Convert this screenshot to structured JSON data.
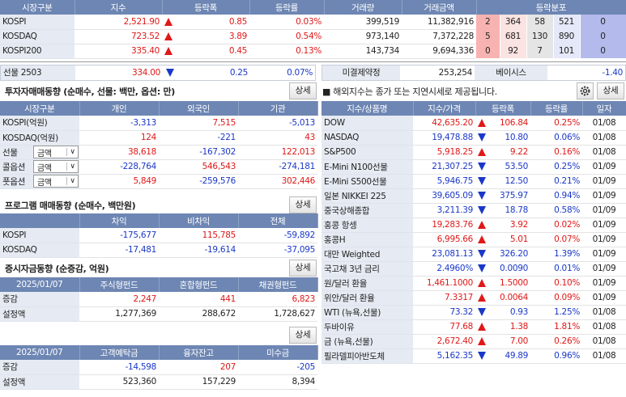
{
  "market": {
    "headers": [
      "시장구분",
      "지수",
      "등락폭",
      "등락률",
      "거래량",
      "거래금액",
      "등락분포"
    ],
    "rows": [
      {
        "name": "KOSPI",
        "index": "2,521.90",
        "dir": "up",
        "change": "0.85",
        "rate": "0.03%",
        "volume": "399,519",
        "amount": "11,382,916",
        "dist": [
          "2",
          "364",
          "58",
          "521",
          "0"
        ]
      },
      {
        "name": "KOSDAQ",
        "index": "723.52",
        "dir": "up",
        "change": "3.89",
        "rate": "0.54%",
        "volume": "973,140",
        "amount": "7,372,228",
        "dist": [
          "5",
          "681",
          "130",
          "890",
          "0"
        ]
      },
      {
        "name": "KOSPI200",
        "index": "335.40",
        "dir": "up",
        "change": "0.45",
        "rate": "0.13%",
        "volume": "143,734",
        "amount": "9,694,336",
        "dist": [
          "0",
          "92",
          "7",
          "101",
          "0"
        ]
      }
    ]
  },
  "futures": {
    "name": "선물 2503",
    "value": "334.00",
    "dir": "down",
    "change": "0.25",
    "rate": "0.07%",
    "oi_label": "미결제약정",
    "oi_value": "253,254",
    "basis_label": "베이시스",
    "basis_value": "-1.40"
  },
  "investor": {
    "title": "투자자매매동향 (순매수, 선물: 백만, 옵션: 만)",
    "detail": "상세",
    "headers": [
      "시장구분",
      "개인",
      "외국인",
      "기관"
    ],
    "rows": [
      {
        "name": "KOSPI(억원)",
        "v1": "-3,313",
        "v2": "7,515",
        "v3": "-5,013",
        "select": ""
      },
      {
        "name": "KOSDAQ(억원)",
        "v1": "124",
        "v2": "-221",
        "v3": "43",
        "select": ""
      },
      {
        "name": "선물",
        "v1": "38,618",
        "v2": "-167,302",
        "v3": "122,013",
        "select": "금액"
      },
      {
        "name": "콜옵션",
        "v1": "-228,764",
        "v2": "546,543",
        "v3": "-274,181",
        "select": "금액"
      },
      {
        "name": "풋옵션",
        "v1": "5,849",
        "v2": "-259,576",
        "v3": "302,446",
        "select": "금액"
      }
    ]
  },
  "program": {
    "title": "프로그램 매매동향 (순매수, 백만원)",
    "detail": "상세",
    "headers": [
      "",
      "차익",
      "비차익",
      "전체"
    ],
    "rows": [
      {
        "name": "KOSPI",
        "v1": "-175,677",
        "v2": "115,785",
        "v3": "-59,892"
      },
      {
        "name": "KOSDAQ",
        "v1": "-17,481",
        "v2": "-19,614",
        "v3": "-37,095"
      }
    ]
  },
  "fund": {
    "title": "증시자금동향 (순증감, 억원)",
    "detail": "상세",
    "headers": [
      "2025/01/07",
      "주식형펀드",
      "혼합형펀드",
      "채권형펀드"
    ],
    "rows": [
      {
        "name": "증감",
        "v1": "2,247",
        "v2": "441",
        "v3": "6,823"
      },
      {
        "name": "설정액",
        "v1": "1,277,369",
        "v2": "288,672",
        "v3": "1,728,627"
      }
    ]
  },
  "deposit": {
    "detail": "상세",
    "headers": [
      "2025/01/07",
      "고객예탁금",
      "융자잔고",
      "미수금"
    ],
    "rows": [
      {
        "name": "증감",
        "v1": "-14,598",
        "v2": "207",
        "v3": "-205"
      },
      {
        "name": "설정액",
        "v1": "523,360",
        "v2": "157,229",
        "v3": "8,394"
      }
    ]
  },
  "overseas": {
    "notice": "■ 해외지수는 종가 또는 지연시세로 제공됩니다.",
    "detail": "상세",
    "headers": [
      "지수/상품명",
      "지수/가격",
      "등락폭",
      "등락률",
      "일자"
    ],
    "rows": [
      {
        "name": "DOW",
        "price": "42,635.20",
        "dir": "up",
        "change": "106.84",
        "rate": "0.25%",
        "date": "01/08"
      },
      {
        "name": "NASDAQ",
        "price": "19,478.88",
        "dir": "down",
        "change": "10.80",
        "rate": "0.06%",
        "date": "01/08"
      },
      {
        "name": "S&P500",
        "price": "5,918.25",
        "dir": "up",
        "change": "9.22",
        "rate": "0.16%",
        "date": "01/08"
      },
      {
        "name": "E-Mini N100선물",
        "price": "21,307.25",
        "dir": "down",
        "change": "53.50",
        "rate": "0.25%",
        "date": "01/09"
      },
      {
        "name": "E-Mini S500선물",
        "price": "5,946.75",
        "dir": "down",
        "change": "12.50",
        "rate": "0.21%",
        "date": "01/09"
      },
      {
        "name": "일본 NIKKEI 225",
        "price": "39,605.09",
        "dir": "down",
        "change": "375.97",
        "rate": "0.94%",
        "date": "01/09"
      },
      {
        "name": "중국상해종합",
        "price": "3,211.39",
        "dir": "down",
        "change": "18.78",
        "rate": "0.58%",
        "date": "01/09"
      },
      {
        "name": "홍콩 항셍",
        "price": "19,283.76",
        "dir": "up",
        "change": "3.92",
        "rate": "0.02%",
        "date": "01/09"
      },
      {
        "name": "홍콩H",
        "price": "6,995.66",
        "dir": "up",
        "change": "5.01",
        "rate": "0.07%",
        "date": "01/09"
      },
      {
        "name": "대만 Weighted",
        "price": "23,081.13",
        "dir": "down",
        "change": "326.20",
        "rate": "1.39%",
        "date": "01/09"
      },
      {
        "name": "국고채 3년 금리",
        "price": "2.4960%",
        "dir": "down",
        "change": "0.0090",
        "rate": "0.01%",
        "date": "01/09"
      },
      {
        "name": "원/달러 환율",
        "price": "1,461.1000",
        "dir": "up",
        "change": "1.5000",
        "rate": "0.10%",
        "date": "01/09"
      },
      {
        "name": "위안/달러 환율",
        "price": "7.3317",
        "dir": "up",
        "change": "0.0064",
        "rate": "0.09%",
        "date": "01/09"
      },
      {
        "name": "WTI (뉴욕,선물)",
        "price": "73.32",
        "dir": "down",
        "change": "0.93",
        "rate": "1.25%",
        "date": "01/08"
      },
      {
        "name": "두바이유",
        "price": "77.68",
        "dir": "up",
        "change": "1.38",
        "rate": "1.81%",
        "date": "01/08"
      },
      {
        "name": "금 (뉴욕,선물)",
        "price": "2,672.40",
        "dir": "up",
        "change": "7.00",
        "rate": "0.26%",
        "date": "01/08"
      },
      {
        "name": "필라델피아반도체",
        "price": "5,162.35",
        "dir": "down",
        "change": "49.89",
        "rate": "0.96%",
        "date": "01/08"
      }
    ]
  }
}
